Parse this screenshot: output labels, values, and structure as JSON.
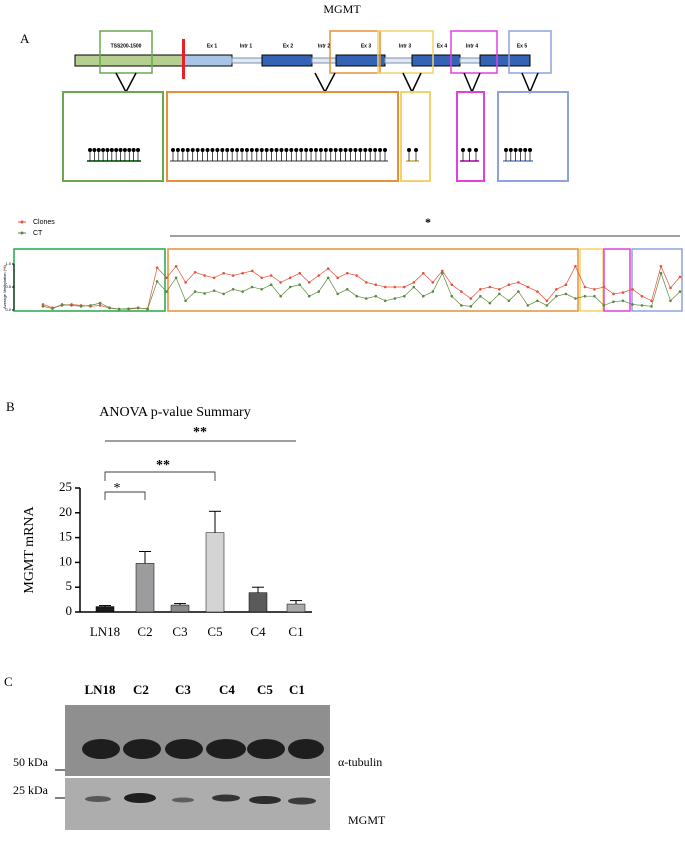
{
  "figure": {
    "title": "MGMT",
    "panels": [
      "A",
      "B",
      "C"
    ],
    "gene_labels": [
      "TSS200-1500",
      "Ex 1",
      "Intr 1",
      "Ex 2",
      "Intr 2",
      "Ex 3",
      "Intr 3",
      "Ex 4",
      "Intr 4",
      "Ex 5"
    ],
    "blot": {
      "lanes": [
        "LN18",
        "C2",
        "C3",
        "C4",
        "C5",
        "C1"
      ],
      "markers": [
        "50 kDa",
        "25 kDa"
      ],
      "proteins": [
        "α-tubulin",
        "MGMT"
      ]
    }
  },
  "chart_data": [
    {
      "type": "line",
      "ylabel": "Average Methylation (%)",
      "annotation": "*",
      "ylim": [
        0,
        1
      ],
      "yticks": [
        {
          "value": 0,
          "label": "0.0"
        },
        {
          "value": 0.5,
          "label": "0.5"
        },
        {
          "value": 1,
          "label": "1.0"
        }
      ],
      "series": [
        {
          "name": "Clones",
          "color": "#e8503a",
          "values": [
            0.12,
            0.05,
            0.1,
            0.12,
            0.1,
            0.08,
            0.1,
            0.04,
            0.02,
            0.02,
            0.04,
            0.03,
            0.92,
            0.7,
            0.95,
            0.6,
            0.82,
            0.75,
            0.7,
            0.8,
            0.75,
            0.8,
            0.85,
            0.7,
            0.75,
            0.6,
            0.7,
            0.8,
            0.6,
            0.75,
            0.9,
            0.7,
            0.8,
            0.75,
            0.6,
            0.55,
            0.5,
            0.5,
            0.5,
            0.6,
            0.8,
            0.6,
            0.85,
            0.55,
            0.4,
            0.25,
            0.45,
            0.5,
            0.45,
            0.55,
            0.6,
            0.5,
            0.4,
            0.2,
            0.45,
            0.55,
            0.95,
            0.5,
            0.45,
            0.5,
            0.35,
            0.38,
            0.45,
            0.3,
            0.2,
            0.95,
            0.48,
            0.72
          ]
        },
        {
          "name": "CT",
          "color": "#5b8a3c",
          "values": [
            0.08,
            0.03,
            0.12,
            0.1,
            0.08,
            0.1,
            0.15,
            0.05,
            0.02,
            0.03,
            0.05,
            0.02,
            0.62,
            0.4,
            0.7,
            0.2,
            0.4,
            0.36,
            0.42,
            0.35,
            0.45,
            0.4,
            0.5,
            0.45,
            0.55,
            0.3,
            0.5,
            0.55,
            0.3,
            0.4,
            0.7,
            0.35,
            0.45,
            0.3,
            0.25,
            0.3,
            0.2,
            0.25,
            0.3,
            0.5,
            0.3,
            0.4,
            0.8,
            0.3,
            0.1,
            0.08,
            0.3,
            0.15,
            0.35,
            0.2,
            0.4,
            0.1,
            0.2,
            0.1,
            0.3,
            0.35,
            0.25,
            0.3,
            0.3,
            0.1,
            0.18,
            0.2,
            0.12,
            0.1,
            0.08,
            0.8,
            0.2,
            0.4
          ]
        }
      ]
    },
    {
      "type": "bar",
      "title": "ANOVA p-value Summary",
      "ylabel": "MGMT mRNA",
      "categories": [
        "LN18",
        "C2",
        "C3",
        "C5",
        "C4",
        "C1"
      ],
      "values": [
        1.1,
        9.8,
        1.4,
        16,
        3.9,
        1.6
      ],
      "errors": [
        0.2,
        2.4,
        0.3,
        4.3,
        1.1,
        0.7
      ],
      "colors": [
        "#1a1a1a",
        "#9c9c9e",
        "#8a8a8c",
        "#d4d4d4",
        "#5a5a5a",
        "#aaaaaa"
      ],
      "ylim": [
        0,
        25
      ],
      "yticks": [
        0,
        5,
        10,
        15,
        20,
        25
      ],
      "significance": [
        "**",
        "*",
        "**"
      ]
    }
  ]
}
